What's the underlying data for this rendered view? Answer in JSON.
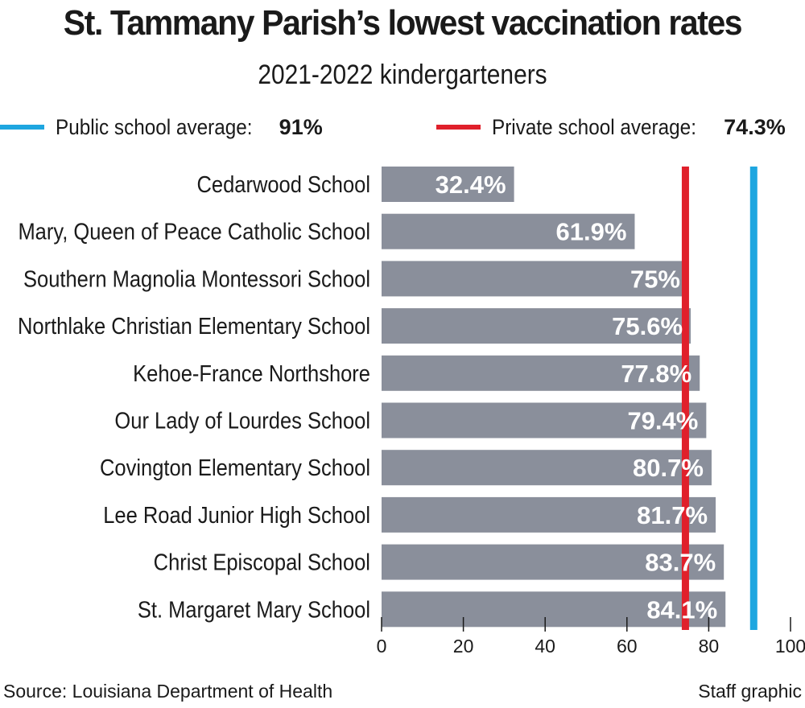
{
  "chart_data": {
    "type": "bar",
    "orientation": "horizontal",
    "title": "St. Tammany Parish’s lowest vaccination rates",
    "subtitle": "2021-2022 kindergarteners",
    "categories": [
      "Cedarwood School",
      "Mary, Queen of Peace Catholic School",
      "Southern Magnolia Montessori School",
      "Northlake Christian Elementary School",
      "Kehoe-France Northshore",
      "Our Lady of Lourdes School",
      "Covington Elementary School",
      "Lee Road Junior High School",
      "Christ Episcopal School",
      "St. Margaret Mary School"
    ],
    "values": [
      32.4,
      61.9,
      75,
      75.6,
      77.8,
      79.4,
      80.7,
      81.7,
      83.7,
      84.1
    ],
    "value_labels": [
      "32.4%",
      "61.9%",
      "75%",
      "75.6%",
      "77.8%",
      "79.4%",
      "80.7%",
      "81.7%",
      "83.7%",
      "84.1%"
    ],
    "xlim": [
      0,
      100
    ],
    "xticks": [
      0,
      20,
      40,
      60,
      80,
      100
    ],
    "grid": false,
    "bar_color": "#8a8f9b",
    "reference_lines": [
      {
        "label": "Public school average:",
        "value": 91,
        "value_label": "91%",
        "color": "#1ea6e0"
      },
      {
        "label": "Private school average:",
        "value": 74.3,
        "value_label": "74.3%",
        "color": "#e0202b"
      }
    ],
    "legend_position": "top"
  },
  "footer": {
    "source": "Source: Louisiana Department of Health",
    "credit": "Staff graphic"
  }
}
